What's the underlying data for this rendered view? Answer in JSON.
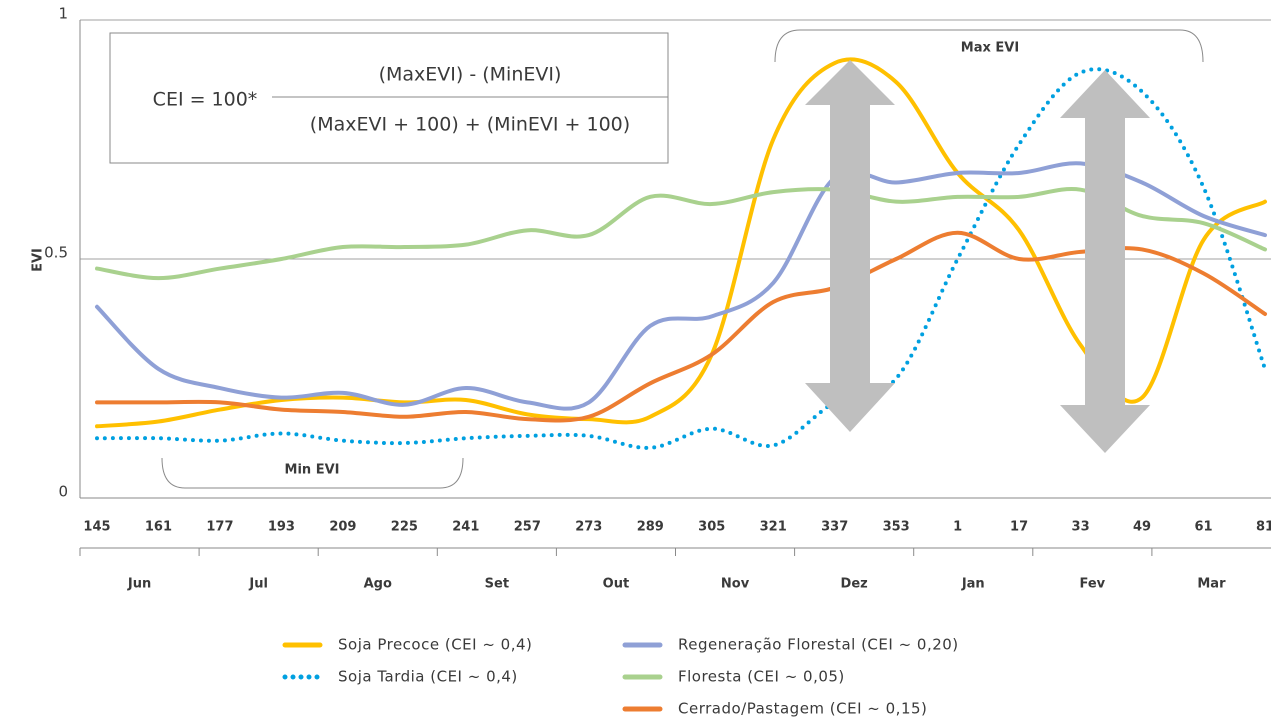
{
  "chart_data": {
    "type": "line",
    "y_label": "EVI",
    "categories": [
      "145",
      "161",
      "177",
      "193",
      "209",
      "225",
      "241",
      "257",
      "273",
      "289",
      "305",
      "321",
      "337",
      "353",
      "1",
      "17",
      "33",
      "49",
      "61",
      "81"
    ],
    "months": [
      "Jun",
      "Jul",
      "Ago",
      "Set",
      "Out",
      "Nov",
      "Dez",
      "Jan",
      "Fev",
      "Mar"
    ],
    "ylim": [
      0,
      1
    ],
    "yticks": [
      0,
      0.5,
      1
    ],
    "grid": true,
    "formula": {
      "left": "CEI = 100*",
      "numerator": "(MaxEVI) - (MinEVI)",
      "denominator": "(MaxEVI + 100) + (MinEVI + 100)"
    },
    "annotations": [
      "Max EVI",
      "Min EVI"
    ],
    "series": [
      {
        "name": "Soja Precoce (CEI ~ 0,4)",
        "color": "#ffc000",
        "style": "solid",
        "values": [
          0.15,
          0.16,
          0.185,
          0.205,
          0.21,
          0.2,
          0.205,
          0.175,
          0.165,
          0.17,
          0.3,
          0.75,
          0.91,
          0.87,
          0.68,
          0.56,
          0.32,
          0.21,
          0.54,
          0.62
        ]
      },
      {
        "name": "Soja Tardia (CEI ~ 0,4)",
        "color": "#00a0e0",
        "style": "dotted",
        "values": [
          0.125,
          0.125,
          0.12,
          0.135,
          0.12,
          0.115,
          0.125,
          0.13,
          0.13,
          0.105,
          0.145,
          0.11,
          0.2,
          0.25,
          0.5,
          0.74,
          0.89,
          0.85,
          0.65,
          0.27
        ]
      },
      {
        "name": "Regeneração Florestal (CEI ~ 0,20)",
        "color": "#8fa0d6",
        "style": "solid",
        "values": [
          0.4,
          0.27,
          0.23,
          0.21,
          0.22,
          0.195,
          0.23,
          0.2,
          0.2,
          0.36,
          0.38,
          0.45,
          0.67,
          0.66,
          0.68,
          0.68,
          0.7,
          0.66,
          0.59,
          0.55
        ]
      },
      {
        "name": "Floresta (CEI ~ 0,05)",
        "color": "#a9d18e",
        "style": "solid",
        "values": [
          0.48,
          0.46,
          0.48,
          0.5,
          0.525,
          0.525,
          0.53,
          0.56,
          0.55,
          0.63,
          0.615,
          0.64,
          0.645,
          0.62,
          0.63,
          0.63,
          0.645,
          0.59,
          0.575,
          0.52
        ]
      },
      {
        "name": "Cerrado/Pastagem (CEI ~ 0,15)",
        "color": "#ed7d31",
        "style": "solid",
        "values": [
          0.2,
          0.2,
          0.2,
          0.185,
          0.18,
          0.17,
          0.18,
          0.165,
          0.17,
          0.24,
          0.3,
          0.41,
          0.44,
          0.5,
          0.555,
          0.5,
          0.515,
          0.52,
          0.47,
          0.385
        ]
      }
    ]
  }
}
